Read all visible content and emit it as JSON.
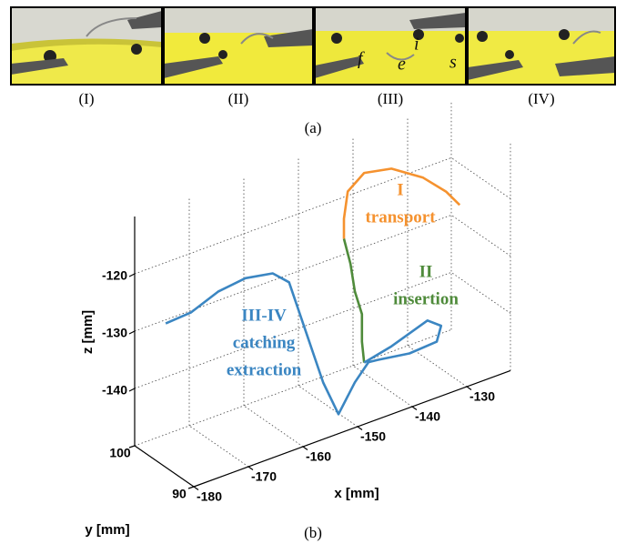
{
  "photos": {
    "panels": [
      "(I)",
      "(II)",
      "(III)",
      "(IV)"
    ],
    "annotations": [
      "f",
      "e",
      "i",
      "s"
    ],
    "caption": "(a)"
  },
  "chart_data": {
    "type": "line3d",
    "caption": "(b)",
    "xlabel": "x [mm]",
    "ylabel": "y [mm]",
    "zlabel": "z [mm]",
    "xlim": [
      -180,
      -122
    ],
    "ylim": [
      90,
      100
    ],
    "zlim": [
      -150,
      -110
    ],
    "xticks": [
      -180,
      -170,
      -160,
      -150,
      -140,
      -130
    ],
    "yticks": [
      90,
      100
    ],
    "zticks": [
      -140,
      -130,
      -120
    ],
    "grid": true,
    "series": [
      {
        "name": [
          "I",
          "transport"
        ],
        "color": "#f5922f",
        "x": [
          -124.8,
          -127.3,
          -131.5,
          -137.3,
          -142.3,
          -145.3,
          -146.0,
          -146.0
        ],
        "y": [
          96,
          96,
          96,
          96,
          96,
          96,
          96,
          96
        ],
        "z": [
          -124.4,
          -121.2,
          -117.3,
          -113.7,
          -112.7,
          -114.9,
          -119.4,
          -122.9
        ]
      },
      {
        "name": [
          "II",
          "insertion"
        ],
        "color": "#4f8b3b",
        "x": [
          -146.0,
          -144.8,
          -144.0,
          -142.7,
          -142.7,
          -142.3
        ],
        "y": [
          96,
          96,
          96,
          96,
          96,
          96
        ],
        "z": [
          -122.9,
          -127.7,
          -132.8,
          -137.2,
          -142.0,
          -145.8
        ]
      },
      {
        "name": [
          "III-IV",
          "catching",
          "extraction"
        ],
        "color": "#3b86c2",
        "x": [
          -142.3,
          -137.3,
          -130.7,
          -128.2,
          -129.0,
          -134.0,
          -139.8,
          -141.5,
          -150.5,
          -153.5,
          -156.3,
          -159.7,
          -159.3,
          -162.3,
          -167.3,
          -172.3,
          -177.3,
          -181.9
        ],
        "y": [
          96,
          96,
          96,
          96,
          96,
          96,
          96,
          96,
          90,
          90,
          90,
          90,
          93,
          93,
          93,
          93,
          93,
          93
        ],
        "z": [
          -145.8,
          -144.7,
          -142.5,
          -144.3,
          -146.8,
          -147.1,
          -146.2,
          -146.0,
          -142.1,
          -146.6,
          -140.1,
          -129.4,
          -123.7,
          -121.1,
          -120.2,
          -120.8,
          -122.7,
          -123.0
        ]
      }
    ]
  }
}
